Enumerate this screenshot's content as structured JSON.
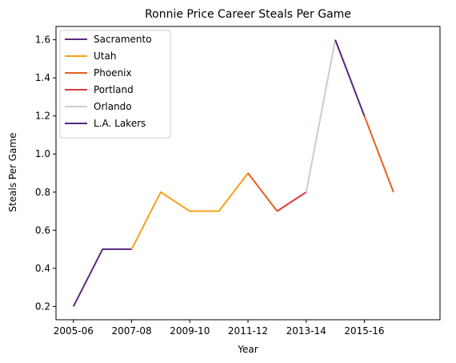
{
  "chart_data": {
    "type": "line",
    "title": "Ronnie Price Career Steals Per Game",
    "xlabel": "Year",
    "ylabel": "Steals Per Game",
    "x": [
      2005,
      2006,
      2007,
      2008,
      2009,
      2010,
      2011,
      2012,
      2013,
      2014,
      2015,
      2016,
      2017
    ],
    "x_tick_labels": [
      "2005-06",
      "2007-08",
      "2009-10",
      "2011-12",
      "2013-14",
      "2015-16"
    ],
    "x_tick_values": [
      2005,
      2007,
      2009,
      2011,
      2013,
      2015
    ],
    "xlim": [
      2004.4,
      2017.6
    ],
    "ylim": [
      0.13,
      1.67
    ],
    "y_ticks": [
      0.2,
      0.4,
      0.6,
      0.8,
      1.0,
      1.2,
      1.4,
      1.6
    ],
    "y_tick_labels": [
      "0.2",
      "0.4",
      "0.6",
      "0.8",
      "1.0",
      "1.2",
      "1.4",
      "1.6"
    ],
    "grid": false,
    "legend_position": "top-left",
    "series": [
      {
        "name": "Sacramento",
        "color": "#5a2d81",
        "points": [
          [
            2005,
            0.2
          ],
          [
            2006,
            0.5
          ],
          [
            2007,
            0.5
          ]
        ]
      },
      {
        "name": "Utah",
        "color": "#f9a01b",
        "points": [
          [
            2007,
            0.5
          ],
          [
            2008,
            0.8
          ],
          [
            2009,
            0.7
          ],
          [
            2010,
            0.7
          ],
          [
            2011,
            0.9
          ]
        ]
      },
      {
        "name": "Phoenix",
        "color": "#e56020",
        "points": [
          [
            2011,
            0.9
          ],
          [
            2012,
            0.7
          ]
        ]
      },
      {
        "name": "Portland",
        "color": "#e03a3e",
        "points": [
          [
            2012,
            0.7
          ],
          [
            2013,
            0.8
          ]
        ]
      },
      {
        "name": "Orlando",
        "color": "#c4ced4",
        "points": [
          [
            2013,
            0.8
          ],
          [
            2014,
            1.6
          ]
        ]
      },
      {
        "name": "L.A. Lakers",
        "color": "#552583",
        "points": [
          [
            2014,
            1.6
          ],
          [
            2015,
            1.2
          ]
        ]
      },
      {
        "name": "Phoenix",
        "color": "#e56020",
        "points": [
          [
            2015,
            1.2
          ],
          [
            2016,
            0.8
          ]
        ],
        "legend": false
      }
    ]
  }
}
